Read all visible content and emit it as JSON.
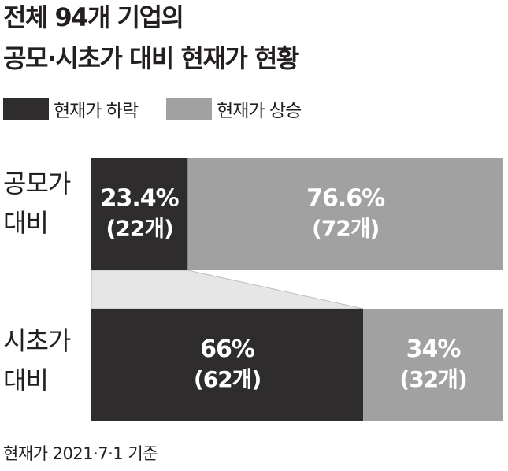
{
  "title": {
    "line1": "전체 94개 기업의",
    "line2": "공모·시초가 대비 현재가 현황"
  },
  "legend": [
    {
      "label": "현재가 하락",
      "color": "#2e2c2d"
    },
    {
      "label": "현재가 상승",
      "color": "#a2a1a1"
    }
  ],
  "categories": [
    {
      "line1": "공모가",
      "line2": "대비"
    },
    {
      "line1": "시초가",
      "line2": "대비"
    }
  ],
  "footer": "현재가 2021·7·1 기준",
  "chart_data": {
    "type": "bar",
    "orientation": "horizontal",
    "stacked": true,
    "percent_stacked": true,
    "categories": [
      "공모가 대비",
      "시초가 대비"
    ],
    "series": [
      {
        "name": "현재가 하락",
        "values": [
          23.4,
          66
        ],
        "counts": [
          22,
          62
        ],
        "labels": [
          "23.4%",
          "66%"
        ],
        "count_labels": [
          "(22개)",
          "(62개)"
        ],
        "color": "#2e2c2d"
      },
      {
        "name": "현재가 상승",
        "values": [
          76.6,
          34
        ],
        "counts": [
          72,
          32
        ],
        "labels": [
          "76.6%",
          "34%"
        ],
        "count_labels": [
          "(72개)",
          "(32개)"
        ],
        "color": "#a2a1a1"
      }
    ],
    "xlim": [
      0,
      100
    ],
    "grid": false,
    "legend_position": "top-left"
  }
}
